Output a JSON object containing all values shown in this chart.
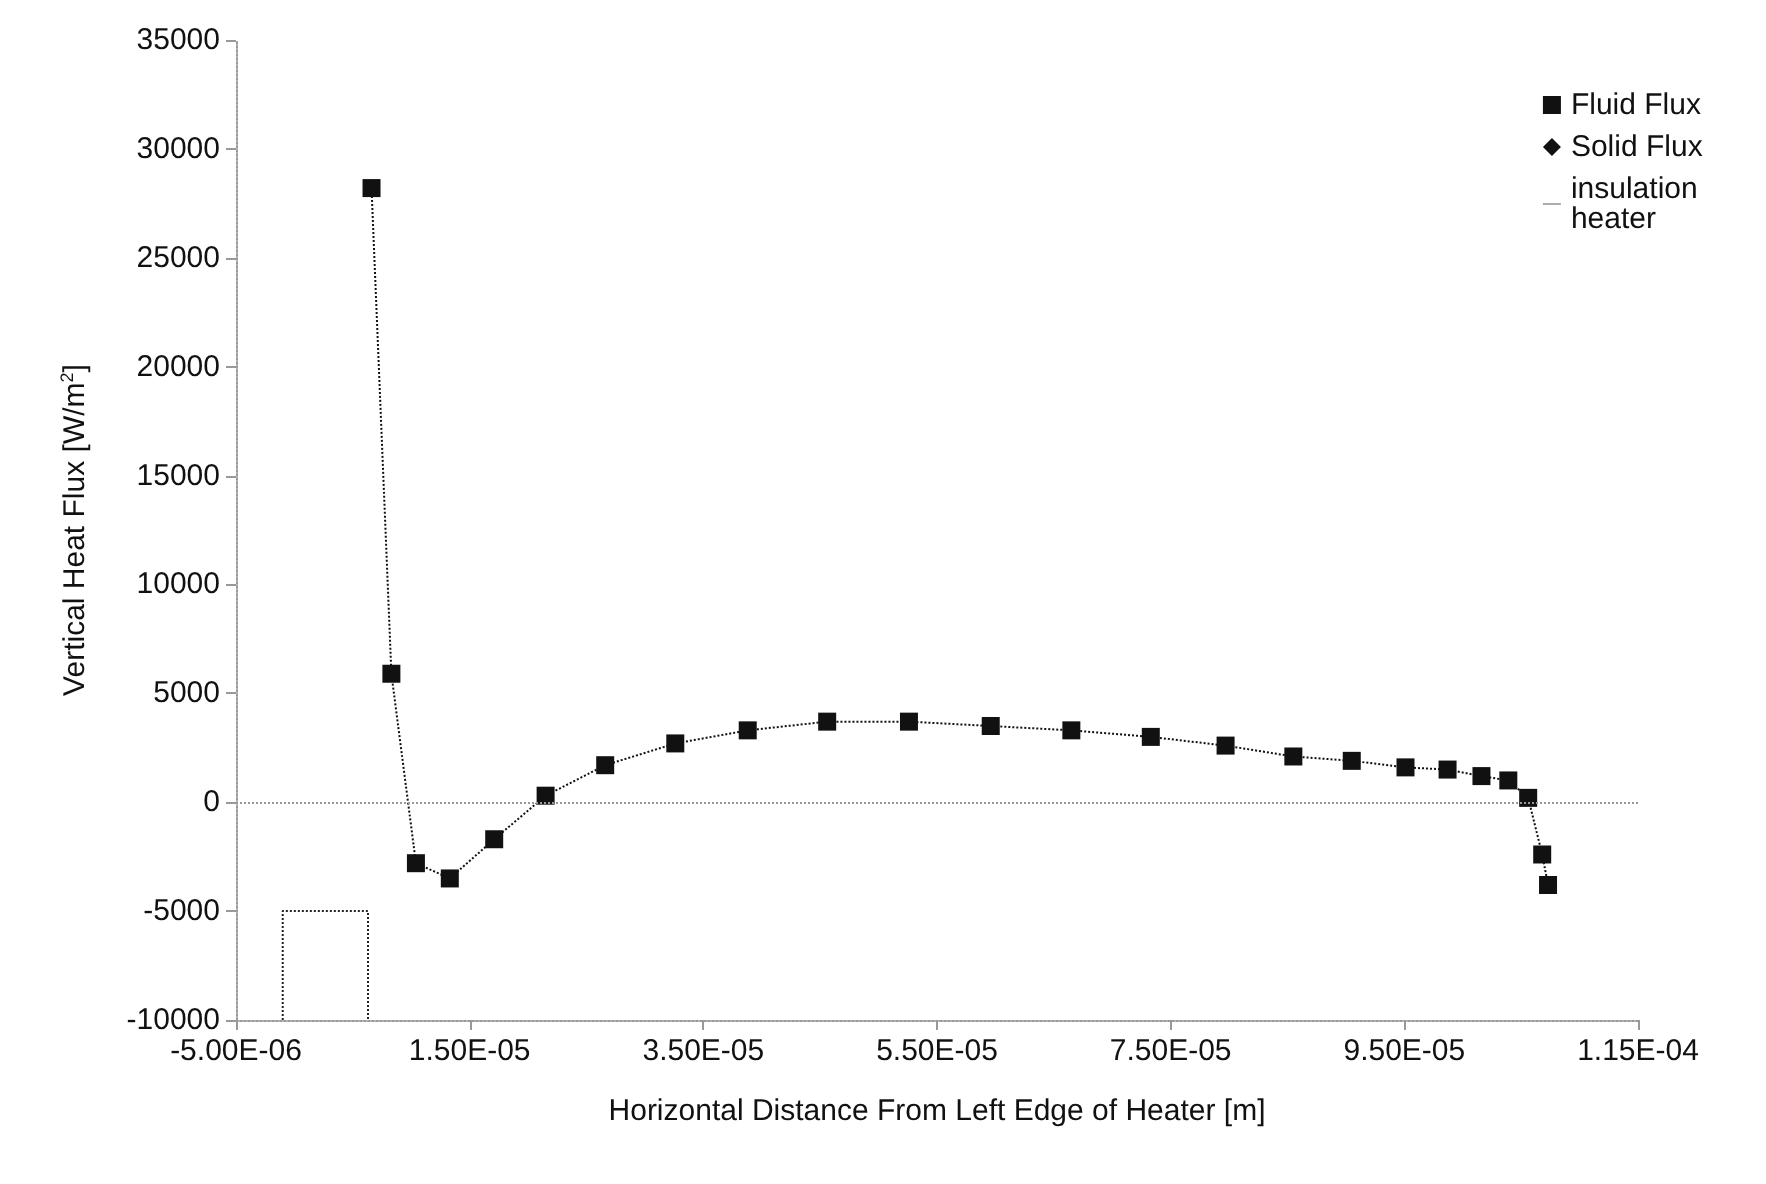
{
  "chart_data": {
    "type": "line",
    "xlabel": "Horizontal Distance From Left Edge of Heater [m]",
    "ylabel": "Vertical Heat Flux [W/m$^{2}$]",
    "xlim": [
      -5e-06,
      0.000115
    ],
    "xticks": [
      {
        "value": -5e-06,
        "label": "-5.00E-06"
      },
      {
        "value": 1.5e-05,
        "label": "1.50E-05"
      },
      {
        "value": 3.5e-05,
        "label": "3.50E-05"
      },
      {
        "value": 5.5e-05,
        "label": "5.50E-05"
      },
      {
        "value": 7.5e-05,
        "label": "7.50E-05"
      },
      {
        "value": 9.5e-05,
        "label": "9.50E-05"
      },
      {
        "value": 0.000115,
        "label": "1.15E-04"
      }
    ],
    "ylim": [
      -10000,
      35000
    ],
    "yticks": [
      -10000,
      -5000,
      0,
      5000,
      10000,
      15000,
      20000,
      25000,
      30000,
      35000
    ],
    "grid": false,
    "legend": "top right",
    "ref_lines": [
      {
        "axis": "y",
        "value": 0,
        "color": "#999999",
        "line_style": "dotted"
      }
    ],
    "series": [
      {
        "name": "Fluid Flux",
        "color": "#111111",
        "marker": "square",
        "line_style": "dotted",
        "x": [
          6.6e-06,
          8.3e-06,
          1.04e-05,
          1.33e-05,
          1.71e-05,
          2.15e-05,
          2.66e-05,
          3.26e-05,
          3.88e-05,
          4.56e-05,
          5.26e-05,
          5.96e-05,
          6.65e-05,
          7.33e-05,
          7.97e-05,
          8.55e-05,
          9.05e-05,
          9.51e-05,
          9.87e-05,
          0.0001016,
          0.0001039,
          0.0001056,
          0.0001068,
          0.0001073
        ],
        "values": [
          28200,
          5900,
          -2800,
          -3500,
          -1700,
          300,
          1700,
          2700,
          3300,
          3700,
          3700,
          3500,
          3300,
          3000,
          2600,
          2100,
          1900,
          1600,
          1500,
          1200,
          1000,
          200,
          -2400,
          -3800
        ]
      },
      {
        "name": "Solid Flux",
        "color": "#111111",
        "marker": "diamond",
        "line_style": "none"
      },
      {
        "name": "insulation heater",
        "color": "#222222",
        "marker": "none",
        "line_style": "dotted",
        "x": [
          -1e-06,
          -1e-06,
          6.3e-06,
          6.3e-06
        ],
        "values": [
          -10000,
          -5000,
          -5000,
          -10000
        ]
      }
    ]
  }
}
